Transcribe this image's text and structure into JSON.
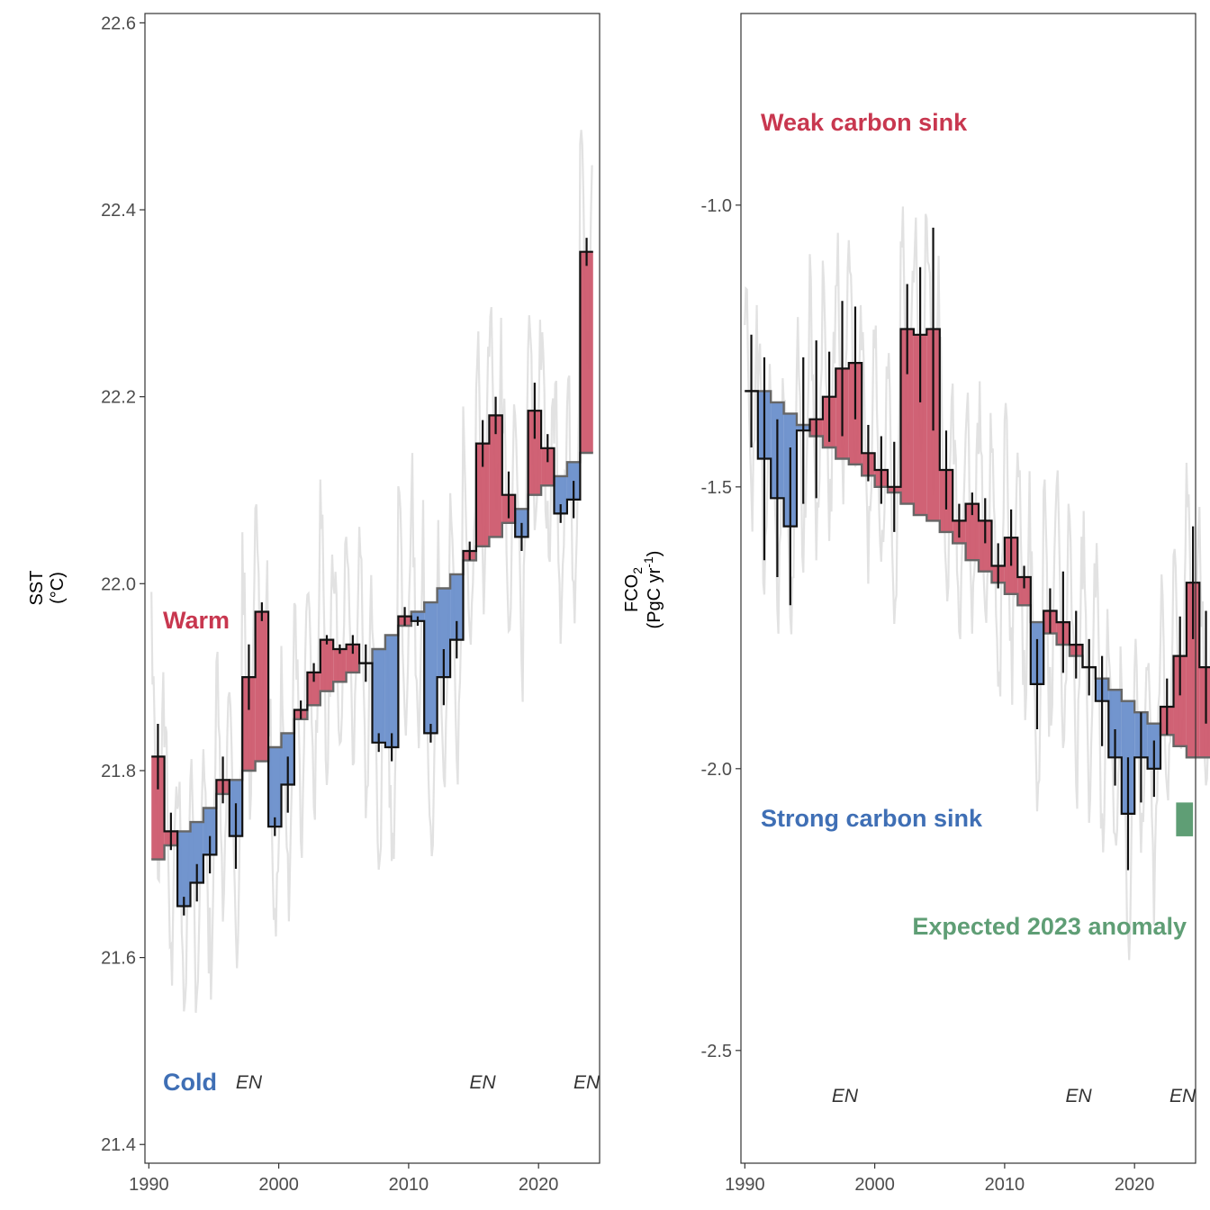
{
  "chart_data": [
    {
      "type": "line",
      "panel": "left",
      "ylabel_line1": "SST",
      "ylabel_line2": "(°C)",
      "xlim": [
        1989.7,
        2024.7
      ],
      "ylim": [
        21.38,
        22.61
      ],
      "x_ticks": [
        1990,
        2000,
        2010,
        2020
      ],
      "y_ticks": [
        "21.4",
        "21.6",
        "21.8",
        "22.0",
        "22.2",
        "22.4",
        "22.6"
      ],
      "grid": false,
      "annotations": {
        "high_label": "Warm",
        "low_label": "Cold",
        "el_nino_marks": [
          {
            "label": "EN",
            "year": 1997.7
          },
          {
            "label": "EN",
            "year": 2015.7
          },
          {
            "label": "EN",
            "year": 2023.7
          }
        ]
      },
      "colors": {
        "high": "#cd5a6e",
        "low": "#6a8fcb",
        "high_text": "#c8374f",
        "low_text": "#3f6fb5",
        "monthly": "#e2e2e2"
      },
      "series": [
        {
          "name": "annual",
          "values": [
            21.815,
            21.735,
            21.655,
            21.68,
            21.71,
            21.79,
            21.73,
            21.9,
            21.97,
            21.74,
            21.785,
            21.865,
            21.905,
            21.94,
            21.93,
            21.935,
            21.915,
            21.83,
            21.825,
            21.965,
            21.96,
            21.84,
            21.9,
            21.94,
            22.035,
            22.15,
            22.18,
            22.095,
            22.05,
            22.185,
            22.145,
            22.075,
            22.09,
            22.355
          ],
          "error": [
            0.035,
            0.02,
            0.01,
            0.02,
            0.02,
            0.025,
            0.035,
            0.035,
            0.01,
            0.01,
            0.03,
            0.01,
            0.01,
            0.005,
            0.005,
            0.01,
            0.02,
            0.01,
            0.015,
            0.01,
            0.005,
            0.01,
            0.03,
            0.02,
            0.01,
            0.025,
            0.02,
            0.025,
            0.015,
            0.03,
            0.015,
            0.01,
            0.02,
            0.015
          ]
        },
        {
          "name": "trend",
          "values": [
            21.705,
            21.72,
            21.735,
            21.745,
            21.76,
            21.775,
            21.79,
            21.8,
            21.81,
            21.825,
            21.84,
            21.855,
            21.87,
            21.885,
            21.895,
            21.905,
            21.915,
            21.93,
            21.945,
            21.955,
            21.97,
            21.98,
            21.995,
            22.01,
            22.025,
            22.04,
            22.05,
            22.065,
            22.08,
            22.095,
            22.105,
            22.115,
            22.13,
            22.14
          ]
        }
      ]
    },
    {
      "type": "line",
      "panel": "right",
      "ylabel_line1": "FCO2",
      "ylabel_line2": "(PgC yr-1)",
      "xlim": [
        1989.7,
        2024.7
      ],
      "ylim": [
        -2.7,
        -0.66
      ],
      "x_ticks": [
        1990,
        2000,
        2010,
        2020
      ],
      "y_ticks": [
        "-2.5",
        "-2.0",
        "-1.5",
        "-1.0"
      ],
      "grid": false,
      "annotations": {
        "high_label": "Weak carbon sink",
        "low_label": "Strong carbon sink",
        "expected_label": "Expected 2023 anomaly",
        "expected_range": [
          -2.12,
          -2.06
        ],
        "el_nino_marks": [
          {
            "label": "EN",
            "year": 1997.7
          },
          {
            "label": "EN",
            "year": 2015.7
          },
          {
            "label": "EN",
            "year": 2023.7
          }
        ]
      },
      "colors": {
        "high": "#cd5a6e",
        "low": "#6a8fcb",
        "high_text": "#c8374f",
        "low_text": "#3f6fb5",
        "expected": "#5f9e75",
        "monthly": "#e2e2e2"
      },
      "series": [
        {
          "name": "annual",
          "values": [
            -1.33,
            -1.45,
            -1.52,
            -1.57,
            -1.4,
            -1.38,
            -1.34,
            -1.29,
            -1.28,
            -1.44,
            -1.47,
            -1.5,
            -1.22,
            -1.23,
            -1.22,
            -1.47,
            -1.56,
            -1.53,
            -1.56,
            -1.64,
            -1.59,
            -1.66,
            -1.85,
            -1.72,
            -1.74,
            -1.78,
            -1.82,
            -1.88,
            -1.98,
            -2.08,
            -1.98,
            -2.0,
            -1.89,
            -1.8,
            -1.67,
            -1.82
          ],
          "error": [
            0.1,
            0.18,
            0.14,
            0.14,
            0.13,
            0.14,
            0.08,
            0.12,
            0.1,
            0.05,
            0.06,
            0.08,
            0.08,
            0.12,
            0.18,
            0.07,
            0.03,
            0.02,
            0.04,
            0.04,
            0.05,
            0.02,
            0.08,
            0.04,
            0.09,
            0.06,
            0.05,
            0.08,
            0.05,
            0.1,
            0.08,
            0.05,
            0.05,
            0.07,
            0.1,
            0.1
          ]
        },
        {
          "name": "trend",
          "values": [
            -1.33,
            -1.33,
            -1.35,
            -1.37,
            -1.39,
            -1.41,
            -1.43,
            -1.45,
            -1.46,
            -1.48,
            -1.5,
            -1.51,
            -1.53,
            -1.55,
            -1.56,
            -1.58,
            -1.6,
            -1.63,
            -1.65,
            -1.67,
            -1.69,
            -1.71,
            -1.74,
            -1.76,
            -1.78,
            -1.8,
            -1.82,
            -1.84,
            -1.86,
            -1.88,
            -1.9,
            -1.92,
            -1.94,
            -1.96,
            -1.98,
            -1.98
          ]
        }
      ]
    }
  ]
}
